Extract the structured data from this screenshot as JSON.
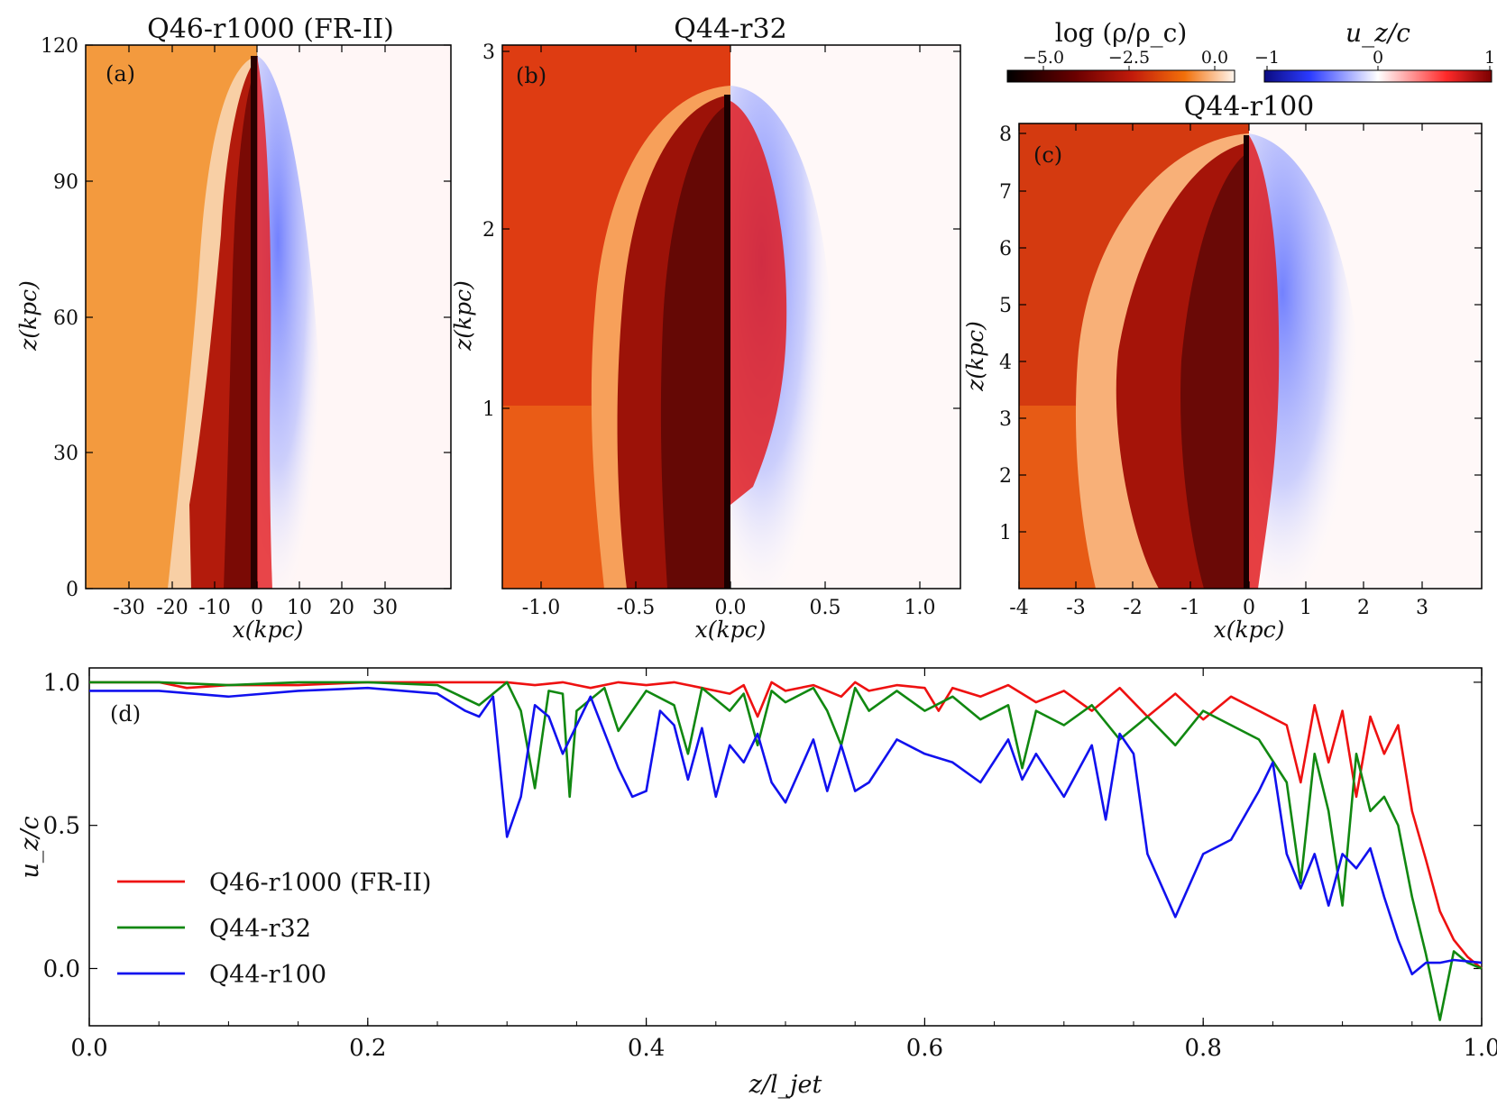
{
  "panels": {
    "a": {
      "tag": "(a)",
      "title": "Q46-r1000 (FR-II)",
      "xlabel": "x(kpc)",
      "ylabel": "z(kpc)",
      "xticks": [
        "-30",
        "-20",
        "-10",
        "0",
        "10",
        "20",
        "30"
      ],
      "yticks": [
        "0",
        "30",
        "60",
        "90",
        "120"
      ]
    },
    "b": {
      "tag": "(b)",
      "title": "Q44-r32",
      "xlabel": "x(kpc)",
      "ylabel": "z(kpc)",
      "xticks": [
        "-1.0",
        "-0.5",
        "0.0",
        "0.5",
        "1.0"
      ],
      "yticks": [
        "1",
        "2",
        "3"
      ]
    },
    "c": {
      "tag": "(c)",
      "title": "Q44-r100",
      "xlabel": "x(kpc)",
      "ylabel": "z(kpc)",
      "xticks": [
        "-4",
        "-3",
        "-2",
        "-1",
        "0",
        "1",
        "2",
        "3"
      ],
      "yticks": [
        "1",
        "2",
        "3",
        "4",
        "5",
        "6",
        "7",
        "8"
      ]
    }
  },
  "colorbars": {
    "density": {
      "label": "log (ρ/ρ_c)",
      "ticks": [
        "−5.0",
        "−2.5",
        "0.0"
      ]
    },
    "velocity": {
      "label": "u_z/c",
      "ticks": [
        "−1",
        "0",
        "1"
      ]
    }
  },
  "colors": {
    "red": "#ee1111",
    "green": "#118811",
    "blue": "#1111ee"
  },
  "chart_data": {
    "type": "line",
    "panel_tag": "(d)",
    "xlabel": "z/l_jet",
    "ylabel": "u_z/c",
    "xlim": [
      0,
      1
    ],
    "ylim": [
      -0.2,
      1.05
    ],
    "xticks": [
      "0.0",
      "0.2",
      "0.4",
      "0.6",
      "0.8",
      "1.0"
    ],
    "yticks": [
      "0.0",
      "0.5",
      "1.0"
    ],
    "legend_position": "lower-left",
    "series": [
      {
        "name": "Q46-r1000 (FR-II)",
        "color": "#ee1111",
        "x": [
          0,
          0.05,
          0.07,
          0.1,
          0.15,
          0.2,
          0.25,
          0.3,
          0.32,
          0.34,
          0.36,
          0.38,
          0.4,
          0.42,
          0.44,
          0.46,
          0.47,
          0.48,
          0.49,
          0.5,
          0.52,
          0.54,
          0.55,
          0.56,
          0.58,
          0.6,
          0.61,
          0.62,
          0.64,
          0.66,
          0.68,
          0.7,
          0.72,
          0.74,
          0.76,
          0.78,
          0.8,
          0.82,
          0.84,
          0.86,
          0.87,
          0.88,
          0.89,
          0.9,
          0.91,
          0.92,
          0.93,
          0.94,
          0.95,
          0.96,
          0.97,
          0.98,
          0.99,
          1.0
        ],
        "y": [
          1.0,
          1.0,
          0.98,
          0.99,
          0.99,
          1.0,
          1.0,
          1.0,
          0.99,
          1.0,
          0.98,
          1.0,
          0.99,
          1.0,
          0.98,
          0.96,
          0.99,
          0.88,
          1.0,
          0.97,
          0.99,
          0.95,
          1.0,
          0.97,
          0.99,
          0.98,
          0.9,
          0.98,
          0.95,
          0.99,
          0.93,
          0.97,
          0.9,
          0.98,
          0.88,
          0.96,
          0.87,
          0.95,
          0.9,
          0.85,
          0.65,
          0.92,
          0.72,
          0.9,
          0.6,
          0.88,
          0.75,
          0.85,
          0.55,
          0.38,
          0.2,
          0.1,
          0.04,
          0.0
        ]
      },
      {
        "name": "Q44-r32",
        "color": "#118811",
        "x": [
          0,
          0.05,
          0.1,
          0.15,
          0.2,
          0.25,
          0.28,
          0.3,
          0.31,
          0.32,
          0.33,
          0.34,
          0.345,
          0.35,
          0.37,
          0.38,
          0.4,
          0.42,
          0.43,
          0.44,
          0.46,
          0.47,
          0.48,
          0.49,
          0.5,
          0.52,
          0.53,
          0.54,
          0.55,
          0.56,
          0.58,
          0.6,
          0.62,
          0.64,
          0.66,
          0.67,
          0.68,
          0.7,
          0.72,
          0.74,
          0.76,
          0.78,
          0.8,
          0.82,
          0.84,
          0.86,
          0.87,
          0.88,
          0.89,
          0.9,
          0.91,
          0.92,
          0.93,
          0.94,
          0.95,
          0.96,
          0.97,
          0.98,
          0.99,
          1.0
        ],
        "y": [
          1.0,
          1.0,
          0.99,
          1.0,
          1.0,
          0.99,
          0.92,
          1.0,
          0.9,
          0.63,
          0.97,
          0.96,
          0.6,
          0.9,
          0.98,
          0.83,
          0.97,
          0.92,
          0.75,
          0.98,
          0.9,
          0.96,
          0.78,
          0.97,
          0.93,
          0.98,
          0.9,
          0.78,
          0.98,
          0.9,
          0.97,
          0.9,
          0.95,
          0.87,
          0.92,
          0.7,
          0.9,
          0.85,
          0.92,
          0.8,
          0.88,
          0.78,
          0.9,
          0.85,
          0.8,
          0.65,
          0.3,
          0.75,
          0.55,
          0.22,
          0.75,
          0.55,
          0.6,
          0.5,
          0.25,
          0.05,
          -0.18,
          0.06,
          0.02,
          0.0
        ]
      },
      {
        "name": "Q44-r100",
        "color": "#1111ee",
        "x": [
          0,
          0.05,
          0.1,
          0.15,
          0.2,
          0.25,
          0.27,
          0.28,
          0.29,
          0.3,
          0.31,
          0.32,
          0.33,
          0.34,
          0.36,
          0.38,
          0.39,
          0.4,
          0.41,
          0.42,
          0.43,
          0.44,
          0.45,
          0.46,
          0.47,
          0.48,
          0.49,
          0.5,
          0.52,
          0.53,
          0.54,
          0.55,
          0.56,
          0.58,
          0.6,
          0.62,
          0.64,
          0.66,
          0.67,
          0.68,
          0.7,
          0.72,
          0.73,
          0.74,
          0.75,
          0.76,
          0.78,
          0.8,
          0.82,
          0.84,
          0.85,
          0.86,
          0.87,
          0.88,
          0.89,
          0.9,
          0.91,
          0.92,
          0.93,
          0.94,
          0.95,
          0.96,
          0.97,
          0.98,
          1.0
        ],
        "y": [
          0.97,
          0.97,
          0.95,
          0.97,
          0.98,
          0.96,
          0.9,
          0.88,
          0.95,
          0.46,
          0.6,
          0.92,
          0.88,
          0.75,
          0.95,
          0.7,
          0.6,
          0.62,
          0.9,
          0.85,
          0.66,
          0.84,
          0.6,
          0.78,
          0.72,
          0.82,
          0.65,
          0.58,
          0.8,
          0.62,
          0.78,
          0.62,
          0.65,
          0.8,
          0.75,
          0.72,
          0.65,
          0.8,
          0.66,
          0.75,
          0.6,
          0.78,
          0.52,
          0.82,
          0.75,
          0.4,
          0.18,
          0.4,
          0.45,
          0.62,
          0.72,
          0.4,
          0.28,
          0.4,
          0.22,
          0.4,
          0.35,
          0.42,
          0.25,
          0.1,
          -0.02,
          0.02,
          0.02,
          0.03,
          0.02
        ]
      }
    ]
  }
}
